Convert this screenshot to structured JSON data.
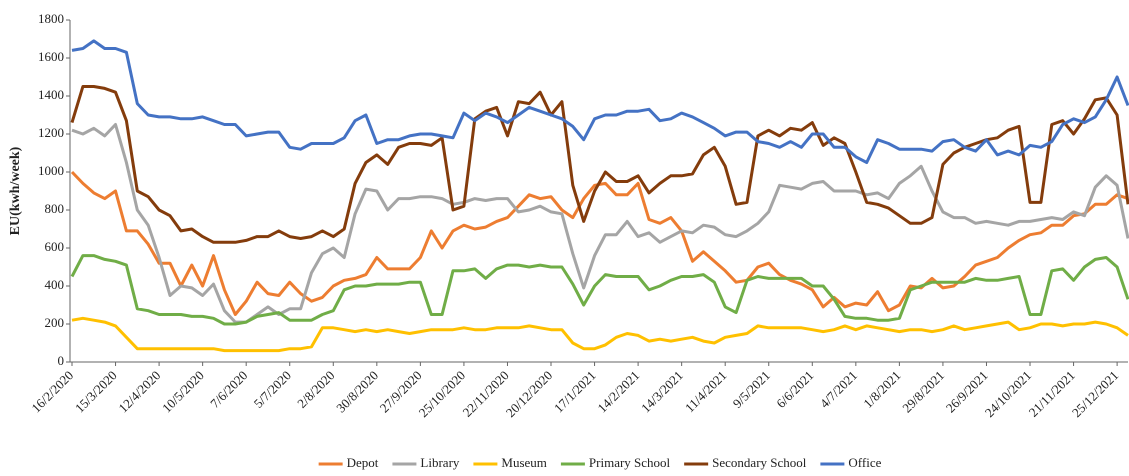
{
  "chart_data": {
    "type": "line",
    "y_label": "EU(kwh/week)",
    "categories": [
      "16/2/2020",
      null,
      null,
      null,
      "15/3/2020",
      null,
      null,
      null,
      "12/4/2020",
      null,
      null,
      null,
      "10/5/2020",
      null,
      null,
      null,
      "7/6/2020",
      null,
      null,
      null,
      "5/7/2020",
      null,
      null,
      null,
      "2/8/2020",
      null,
      null,
      null,
      "30/8/2020",
      null,
      null,
      null,
      "27/9/2020",
      null,
      null,
      null,
      "25/10/2020",
      null,
      null,
      null,
      "22/11/2020",
      null,
      null,
      null,
      "20/12/2020",
      null,
      null,
      null,
      "17/1/2021",
      null,
      null,
      null,
      "14/2/2021",
      null,
      null,
      null,
      "14/3/2021",
      null,
      null,
      null,
      "11/4/2021",
      null,
      null,
      null,
      "9/5/2021",
      null,
      null,
      null,
      "6/6/2021",
      null,
      null,
      null,
      "4/7/2021",
      null,
      null,
      null,
      "1/8/2021",
      null,
      null,
      null,
      "29/8/2021",
      null,
      null,
      null,
      "26/9/2021",
      null,
      null,
      null,
      "24/10/2021",
      null,
      null,
      null,
      "21/11/2021",
      null,
      null,
      null,
      "25/12/2021",
      null
    ],
    "series": [
      {
        "name": "Depot",
        "color": "#ed7d31",
        "values": [
          1000,
          940,
          890,
          860,
          900,
          690,
          690,
          620,
          520,
          520,
          400,
          510,
          400,
          560,
          380,
          250,
          320,
          420,
          360,
          350,
          420,
          360,
          320,
          340,
          400,
          430,
          440,
          460,
          550,
          490,
          490,
          490,
          550,
          690,
          600,
          690,
          720,
          700,
          710,
          740,
          760,
          820,
          880,
          860,
          870,
          800,
          760,
          860,
          930,
          940,
          880,
          880,
          940,
          750,
          730,
          760,
          690,
          530,
          580,
          530,
          480,
          420,
          430,
          500,
          520,
          460,
          430,
          410,
          380,
          290,
          340,
          290,
          310,
          300,
          370,
          270,
          300,
          400,
          390,
          440,
          390,
          400,
          450,
          510,
          530,
          550,
          600,
          640,
          670,
          680,
          720,
          720,
          770,
          780,
          830,
          830,
          880,
          860
        ]
      },
      {
        "name": "Library",
        "color": "#a5a5a5",
        "values": [
          1220,
          1200,
          1230,
          1190,
          1250,
          1050,
          800,
          720,
          550,
          350,
          400,
          390,
          350,
          410,
          270,
          210,
          210,
          250,
          290,
          250,
          280,
          280,
          470,
          570,
          600,
          550,
          780,
          910,
          900,
          800,
          860,
          860,
          870,
          870,
          860,
          830,
          840,
          860,
          850,
          860,
          860,
          790,
          800,
          820,
          790,
          780,
          570,
          390,
          560,
          670,
          670,
          740,
          660,
          680,
          630,
          660,
          690,
          680,
          720,
          710,
          670,
          660,
          690,
          730,
          790,
          930,
          920,
          910,
          940,
          950,
          900,
          900,
          900,
          880,
          890,
          860,
          940,
          980,
          1030,
          900,
          790,
          760,
          760,
          730,
          740,
          730,
          720,
          740,
          740,
          750,
          760,
          750,
          790,
          770,
          920,
          980,
          930,
          650
        ]
      },
      {
        "name": "Museum",
        "color": "#ffc000",
        "values": [
          220,
          230,
          220,
          210,
          190,
          130,
          70,
          70,
          70,
          70,
          70,
          70,
          70,
          70,
          60,
          60,
          60,
          60,
          60,
          60,
          70,
          70,
          80,
          180,
          180,
          170,
          160,
          170,
          160,
          170,
          160,
          150,
          160,
          170,
          170,
          170,
          180,
          170,
          170,
          180,
          180,
          180,
          190,
          180,
          170,
          170,
          100,
          70,
          70,
          90,
          130,
          150,
          140,
          110,
          120,
          110,
          120,
          130,
          110,
          100,
          130,
          140,
          150,
          190,
          180,
          180,
          180,
          180,
          170,
          160,
          170,
          190,
          170,
          190,
          180,
          170,
          160,
          170,
          170,
          160,
          170,
          190,
          170,
          180,
          190,
          200,
          210,
          170,
          180,
          200,
          200,
          190,
          200,
          200,
          210,
          200,
          180,
          140
        ]
      },
      {
        "name": "Primary School",
        "color": "#70ad47",
        "values": [
          450,
          560,
          560,
          540,
          530,
          510,
          280,
          270,
          250,
          250,
          250,
          240,
          240,
          230,
          200,
          200,
          210,
          240,
          250,
          260,
          220,
          220,
          220,
          250,
          270,
          380,
          400,
          400,
          410,
          410,
          410,
          420,
          420,
          250,
          250,
          480,
          480,
          490,
          440,
          490,
          510,
          510,
          500,
          510,
          500,
          500,
          410,
          300,
          400,
          460,
          450,
          450,
          450,
          380,
          400,
          430,
          450,
          450,
          460,
          420,
          290,
          260,
          430,
          450,
          440,
          440,
          440,
          440,
          400,
          400,
          330,
          240,
          230,
          230,
          220,
          220,
          230,
          380,
          400,
          420,
          420,
          420,
          420,
          440,
          430,
          430,
          440,
          450,
          250,
          250,
          480,
          490,
          430,
          500,
          540,
          550,
          500,
          330
        ]
      },
      {
        "name": "Secondary School",
        "color": "#843c0c",
        "values": [
          1260,
          1450,
          1450,
          1440,
          1420,
          1270,
          900,
          870,
          800,
          770,
          690,
          700,
          660,
          630,
          630,
          630,
          640,
          660,
          660,
          690,
          660,
          650,
          660,
          690,
          660,
          700,
          940,
          1050,
          1090,
          1040,
          1130,
          1150,
          1150,
          1140,
          1180,
          800,
          820,
          1280,
          1320,
          1340,
          1190,
          1370,
          1360,
          1420,
          1300,
          1370,
          930,
          740,
          900,
          1000,
          950,
          950,
          980,
          890,
          940,
          980,
          980,
          990,
          1090,
          1130,
          1030,
          830,
          840,
          1190,
          1220,
          1190,
          1230,
          1220,
          1260,
          1140,
          1180,
          1150,
          1000,
          840,
          830,
          810,
          770,
          730,
          730,
          760,
          1040,
          1100,
          1130,
          1150,
          1170,
          1180,
          1220,
          1240,
          840,
          840,
          1250,
          1270,
          1200,
          1280,
          1380,
          1390,
          1300,
          830
        ]
      },
      {
        "name": "Office",
        "color": "#4472c4",
        "values": [
          1640,
          1650,
          1690,
          1650,
          1650,
          1630,
          1360,
          1300,
          1290,
          1290,
          1280,
          1280,
          1290,
          1270,
          1250,
          1250,
          1190,
          1200,
          1210,
          1210,
          1130,
          1120,
          1150,
          1150,
          1150,
          1180,
          1270,
          1300,
          1150,
          1170,
          1170,
          1190,
          1200,
          1200,
          1190,
          1180,
          1310,
          1270,
          1310,
          1290,
          1260,
          1300,
          1340,
          1320,
          1300,
          1280,
          1240,
          1170,
          1280,
          1300,
          1300,
          1320,
          1320,
          1330,
          1270,
          1280,
          1310,
          1290,
          1260,
          1230,
          1190,
          1210,
          1210,
          1160,
          1150,
          1130,
          1160,
          1130,
          1200,
          1200,
          1130,
          1130,
          1080,
          1050,
          1170,
          1150,
          1120,
          1120,
          1120,
          1110,
          1160,
          1170,
          1130,
          1110,
          1170,
          1090,
          1110,
          1090,
          1140,
          1130,
          1160,
          1250,
          1280,
          1260,
          1290,
          1380,
          1500,
          1350
        ]
      }
    ],
    "ylim": [
      0,
      1800
    ],
    "yticks": [
      0,
      200,
      400,
      600,
      800,
      1000,
      1200,
      1400,
      1600,
      1800
    ],
    "grid": false,
    "legend": "bottom"
  }
}
